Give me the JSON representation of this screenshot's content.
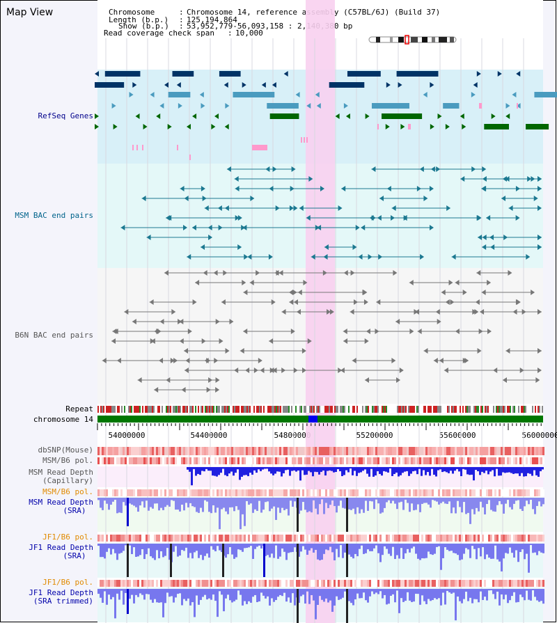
{
  "view_title": "Map View",
  "header": {
    "chromosome_label": "Chromosome",
    "chromosome_value": "Chromosome 14, reference assembly (C57BL/6J) (Build 37)",
    "length_label": "Length (b.p.)",
    "length_value": "125,194,864",
    "show_label": "Show (b.p.)",
    "show_value": "53,952,779-56,093,158 : 2,140,380 bp",
    "coverage_label": "Read coverage check span",
    "coverage_value": "10,000"
  },
  "tracks": {
    "refseq": "RefSeq Genes",
    "msm_bac": "MSM BAC end pairs",
    "b6n_bac": "B6N BAC end pairs",
    "repeat": "Repeat",
    "chromosome": "chromosome 14",
    "dbsnp": "dbSNP(Mouse)",
    "msm_b6_pol_1": "MSM/B6 pol.",
    "msm_depth_cap_1": "MSM Read Depth",
    "msm_depth_cap_2": "(Capillary)",
    "msm_b6_pol_2": "MSM/B6 pol.",
    "msm_depth_sra_1": "MSM Read Depth",
    "msm_depth_sra_2": "(SRA)",
    "jf1_b6_pol_1": "JF1/B6 pol.",
    "jf1_depth_sra_1": "JF1 Read Depth",
    "jf1_depth_sra_2": "(SRA)",
    "jf1_b6_pol_2": "JF1/B6 pol.",
    "jf1_depth_trim_1": "JF1 Read Depth",
    "jf1_depth_trim_2": "(SRA trimmed)"
  },
  "axis_ticks": [
    "54000000",
    "54400000",
    "54800000",
    "55200000",
    "55600000",
    "56000000"
  ],
  "colors": {
    "refseq_label": "#00008b",
    "msm_label": "#00638b",
    "b6n_label": "#555555",
    "pol_orange": "#e08a00",
    "depth_blue": "#0000aa",
    "highlight": "#f8d0f0"
  }
}
